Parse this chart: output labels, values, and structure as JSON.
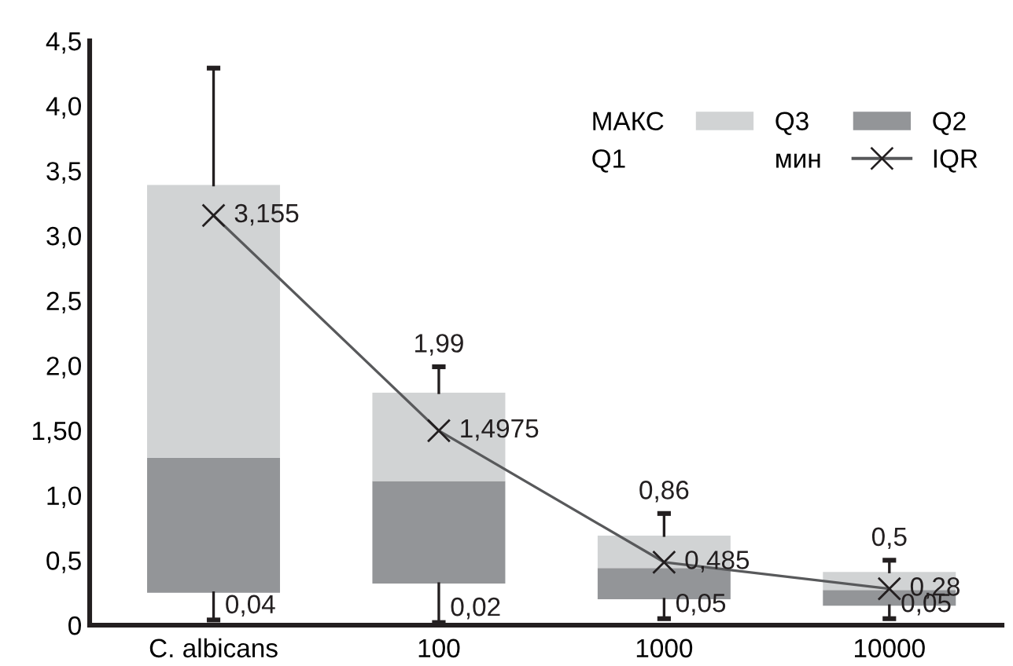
{
  "chart_data": {
    "type": "bar",
    "stacked": true,
    "categories": [
      "C. albicans",
      "100",
      "1000",
      "10000"
    ],
    "ylim": [
      0,
      4.5
    ],
    "yticks": [
      0,
      {
        "value": 0.5,
        "label": "0,5"
      },
      {
        "value": 1.0,
        "label": "1,0"
      },
      {
        "value": 1.5,
        "label": "1,50"
      },
      {
        "value": 2.0,
        "label": "2,0"
      },
      {
        "value": 2.5,
        "label": "2,5"
      },
      {
        "value": 3.0,
        "label": "3,0"
      },
      {
        "value": 3.5,
        "label": "3,5"
      },
      {
        "value": 4.0,
        "label": "4,0"
      },
      {
        "value": 4.5,
        "label": "4,5"
      }
    ],
    "grid": false,
    "legend": "top right",
    "series": [
      {
        "name": "Q2",
        "color": "#939598",
        "base": [
          0.25,
          0.32,
          0.2,
          0.15
        ],
        "values": [
          1.04,
          0.79,
          0.24,
          0.12
        ],
        "errors": [
          [
            0.04,
            0.25
          ],
          [
            0.02,
            0.32
          ],
          [
            0.05,
            0.2
          ],
          [
            0.05,
            0.15
          ]
        ]
      },
      {
        "name": "Q3",
        "color": "#d1d3d4",
        "values": [
          2.1,
          0.68,
          0.25,
          0.14
        ],
        "errors": [
          [
            3.39,
            4.29
          ],
          [
            1.79,
            1.99
          ],
          [
            0.69,
            0.86
          ],
          [
            0.41,
            0.5
          ]
        ]
      },
      {
        "name": "IQR",
        "type": "line",
        "color": "#58595b",
        "marker": "cross",
        "values": [
          3.155,
          1.4975,
          0.485,
          0.28
        ],
        "value_labels": [
          "3,155",
          "1,4975",
          "0,485",
          "0,28"
        ]
      }
    ],
    "annotations": [
      "МАКС",
      "Q1",
      "мин",
      {
        "text": "1,99",
        "x": "100",
        "y": 1.99
      },
      {
        "text": "0,86",
        "x": "1000",
        "y": 0.86
      },
      {
        "text": "0,5",
        "x": "10000",
        "y": 0.5
      },
      {
        "text": "0,04",
        "x": "C. albicans",
        "y": 0.04
      },
      {
        "text": "0,02",
        "x": "100",
        "y": 0.02
      },
      {
        "text": "0,05",
        "x": "1000",
        "y": 0.05
      },
      {
        "text": "0,05",
        "x": "10000",
        "y": 0.05
      }
    ]
  }
}
